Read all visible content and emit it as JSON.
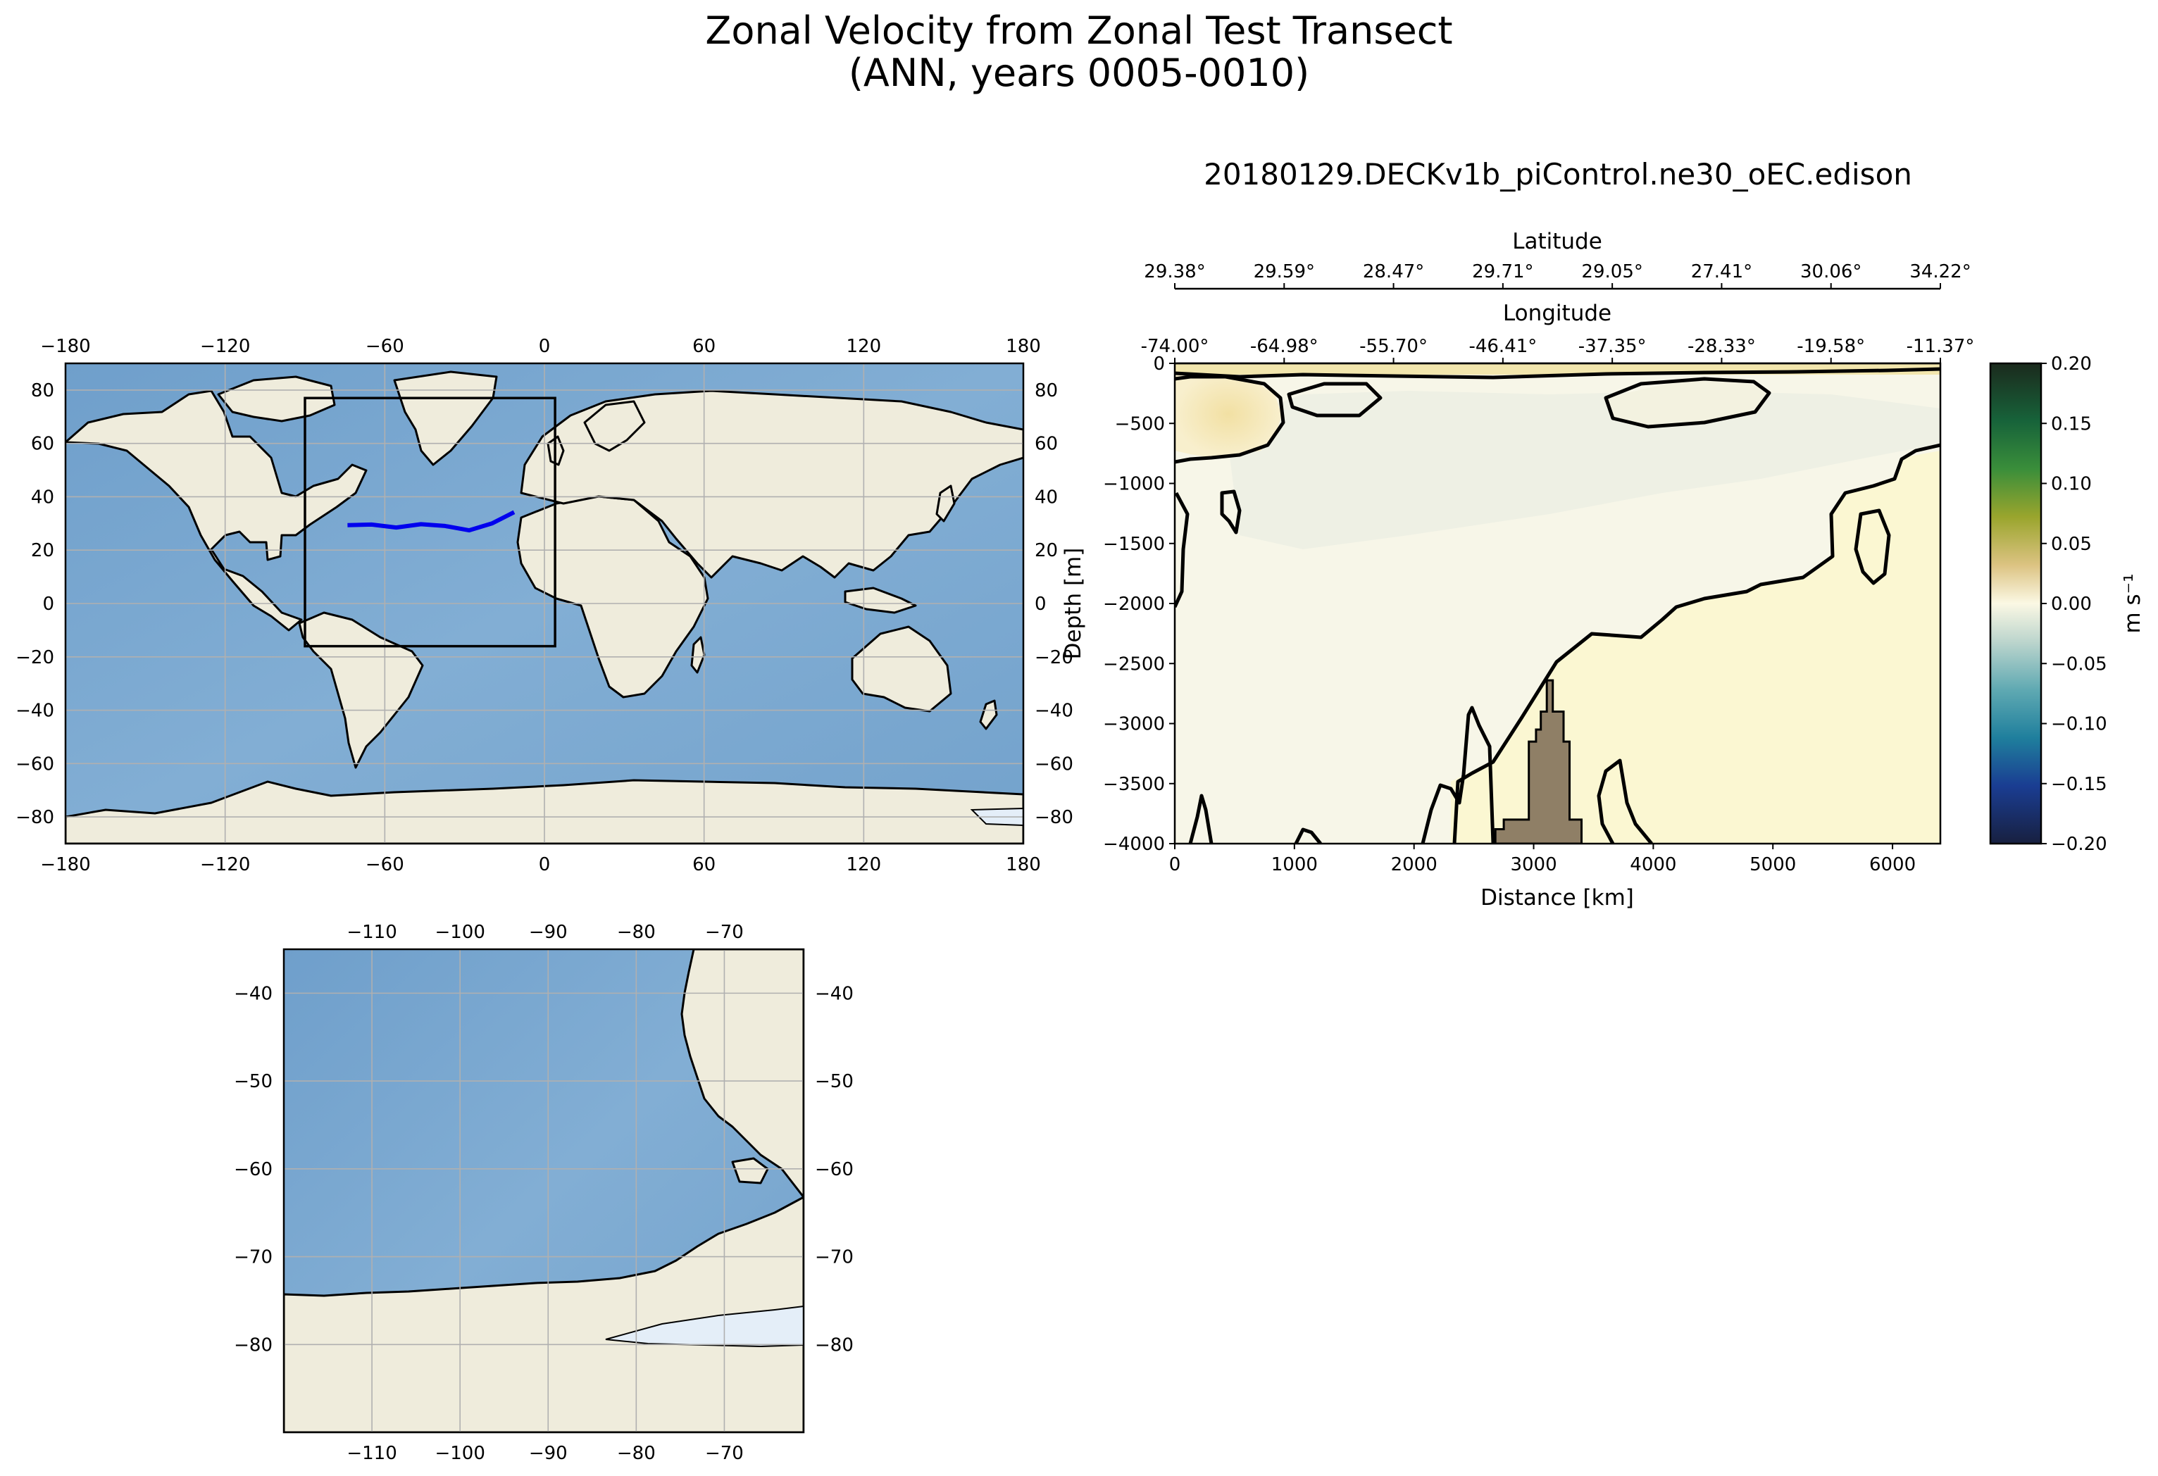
{
  "figure": {
    "title_line1": "Zonal Velocity from Zonal Test Transect",
    "title_line2": "(ANN, years 0005-0010)",
    "subtitle": "20180129.DECKv1b_piControl.ne30_oEC.edison"
  },
  "colors": {
    "ocean": "#7ba7cf",
    "land": "#efecdc",
    "ice": "#e4eef8",
    "transect": "#0000ee",
    "bathymetry": "#8f7f66",
    "grid": "#b0b0b0"
  },
  "global_map": {
    "lon_ticks": [
      "−180",
      "−120",
      "−60",
      "0",
      "60",
      "120",
      "180"
    ],
    "lat_ticks": [
      "80",
      "60",
      "40",
      "20",
      "0",
      "−20",
      "−40",
      "−60",
      "−80"
    ],
    "extent": {
      "lon": [
        -180,
        180
      ],
      "lat": [
        -90,
        90
      ]
    },
    "region_box": {
      "lon": [
        -90,
        4
      ],
      "lat": [
        -16,
        77
      ]
    },
    "transect": [
      [
        -74.0,
        29.38
      ],
      [
        -64.98,
        29.59
      ],
      [
        -55.7,
        28.47
      ],
      [
        -46.41,
        29.71
      ],
      [
        -37.35,
        29.05
      ],
      [
        -28.33,
        27.41
      ],
      [
        -19.58,
        30.06
      ],
      [
        -11.37,
        34.22
      ]
    ]
  },
  "inset_map": {
    "lon_ticks": [
      "−110",
      "−100",
      "−90",
      "−80",
      "−70"
    ],
    "lat_ticks": [
      "−40",
      "−50",
      "−60",
      "−70",
      "−80"
    ],
    "extent": {
      "lon": [
        -120,
        -61
      ],
      "lat": [
        -90,
        -35
      ]
    }
  },
  "chart_data": {
    "type": "contourf",
    "xlabel": "Distance [km]",
    "ylabel": "Depth [m]",
    "xlim": [
      0,
      6400
    ],
    "ylim": [
      -4000,
      0
    ],
    "x_ticks": [
      "0",
      "1000",
      "2000",
      "3000",
      "4000",
      "5000",
      "6000"
    ],
    "y_ticks": [
      "0",
      "−500",
      "−1000",
      "−1500",
      "−2000",
      "−2500",
      "−3000",
      "−3500",
      "−4000"
    ],
    "top_axes": [
      {
        "label": "Latitude",
        "ticks": [
          "29.38°",
          "29.59°",
          "28.47°",
          "29.71°",
          "29.05°",
          "27.41°",
          "30.06°",
          "34.22°"
        ]
      },
      {
        "label": "Longitude",
        "ticks": [
          "-74.00°",
          "-64.98°",
          "-55.70°",
          "-46.41°",
          "-37.35°",
          "-28.33°",
          "-19.58°",
          "-11.37°"
        ]
      }
    ],
    "colorbar": {
      "label": "m s⁻¹",
      "range": [
        -0.2,
        0.2
      ],
      "ticks": [
        "0.20",
        "0.15",
        "0.10",
        "0.05",
        "0.00",
        "−0.05",
        "−0.10",
        "−0.15",
        "−0.20"
      ]
    },
    "contour_levels": [
      0.0
    ],
    "approx_field": [
      {
        "region": "near-surface band 0-100 m",
        "value": 0.02
      },
      {
        "region": "western surface eddy 0-700 m, 0-800 km",
        "value": 0.03
      },
      {
        "region": "eastern upper ocean, 3700-6400 km, below 2000 m",
        "value": 0.01
      },
      {
        "region": "interior 500-2500 m",
        "value": -0.005
      }
    ],
    "bathymetry": {
      "x": [
        2680,
        2680,
        2750,
        2750,
        2960,
        2960,
        3020,
        3020,
        3060,
        3060,
        3110,
        3110,
        3160,
        3160,
        3250,
        3250,
        3300,
        3300,
        3400,
        3400
      ],
      "depth": [
        -4000,
        -3880,
        -3880,
        -3800,
        -3800,
        -3150,
        -3150,
        -3050,
        -3050,
        -2900,
        -2900,
        -2640,
        -2640,
        -2900,
        -2900,
        -3150,
        -3150,
        -3800,
        -3800,
        -4000
      ]
    }
  }
}
